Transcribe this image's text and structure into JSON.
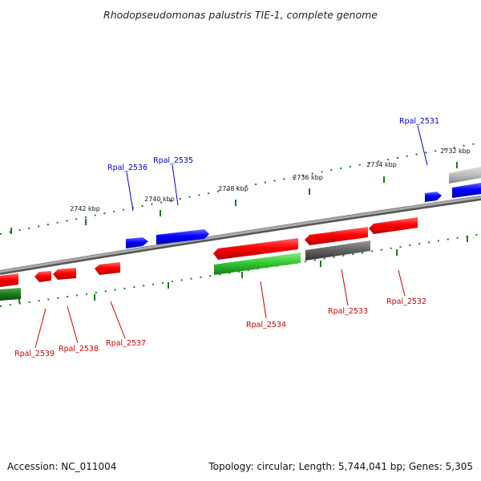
{
  "title": "Rhodopseudomonas palustris TIE-1, complete genome",
  "footer": {
    "accession": "Accession: NC_011004",
    "summary": "Topology: circular; Length: 5,744,041 bp; Genes: 5,305"
  },
  "scale_labels": [
    "2732 kbp",
    "2734 kbp",
    "2736 kbp",
    "2738 kbp",
    "2740 kbp",
    "2742 kbp"
  ],
  "gene_labels": {
    "forward": [
      "Rpal_2531",
      "Rpal_2535",
      "Rpal_2536"
    ],
    "reverse": [
      "Rpal_2532",
      "Rpal_2533",
      "Rpal_2534",
      "Rpal_2537",
      "Rpal_2538",
      "Rpal_2539"
    ]
  },
  "colors": {
    "forward_label": "#0000cc",
    "reverse_label": "#cc0000",
    "scale_tick": "#1a7a1a",
    "backbone": "#888888"
  }
}
